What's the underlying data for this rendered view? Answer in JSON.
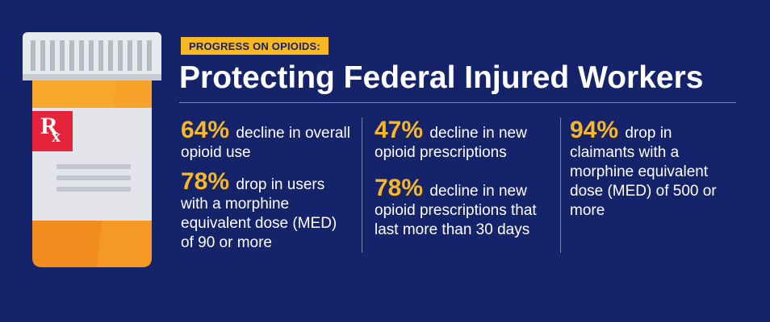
{
  "header": {
    "tag": "PROGRESS ON OPIOIDS:",
    "title": "Protecting Federal Injured Workers"
  },
  "bottle": {
    "rx_label": "R",
    "rx_sub": "x"
  },
  "columns": [
    {
      "stats": [
        {
          "pct": "64%",
          "text": "decline in overall opioid use"
        },
        {
          "pct": "78%",
          "text": "drop in users with a morphine equivalent dose (MED) of 90 or more"
        }
      ]
    },
    {
      "stats": [
        {
          "pct": "47%",
          "text": "decline in new opioid prescriptions"
        },
        {
          "pct": "78%",
          "text": "decline in new opioid prescriptions that last more than 30 days"
        }
      ]
    },
    {
      "stats": [
        {
          "pct": "94%",
          "text": "drop in claimants with a morphine equivalent dose (MED) of 500 or more"
        }
      ]
    }
  ],
  "colors": {
    "background": "#14236a",
    "accent": "#f7b824",
    "bottle_orange": "#f28c1e",
    "rx_red": "#e5243b",
    "cap": "#e8e9ec"
  }
}
